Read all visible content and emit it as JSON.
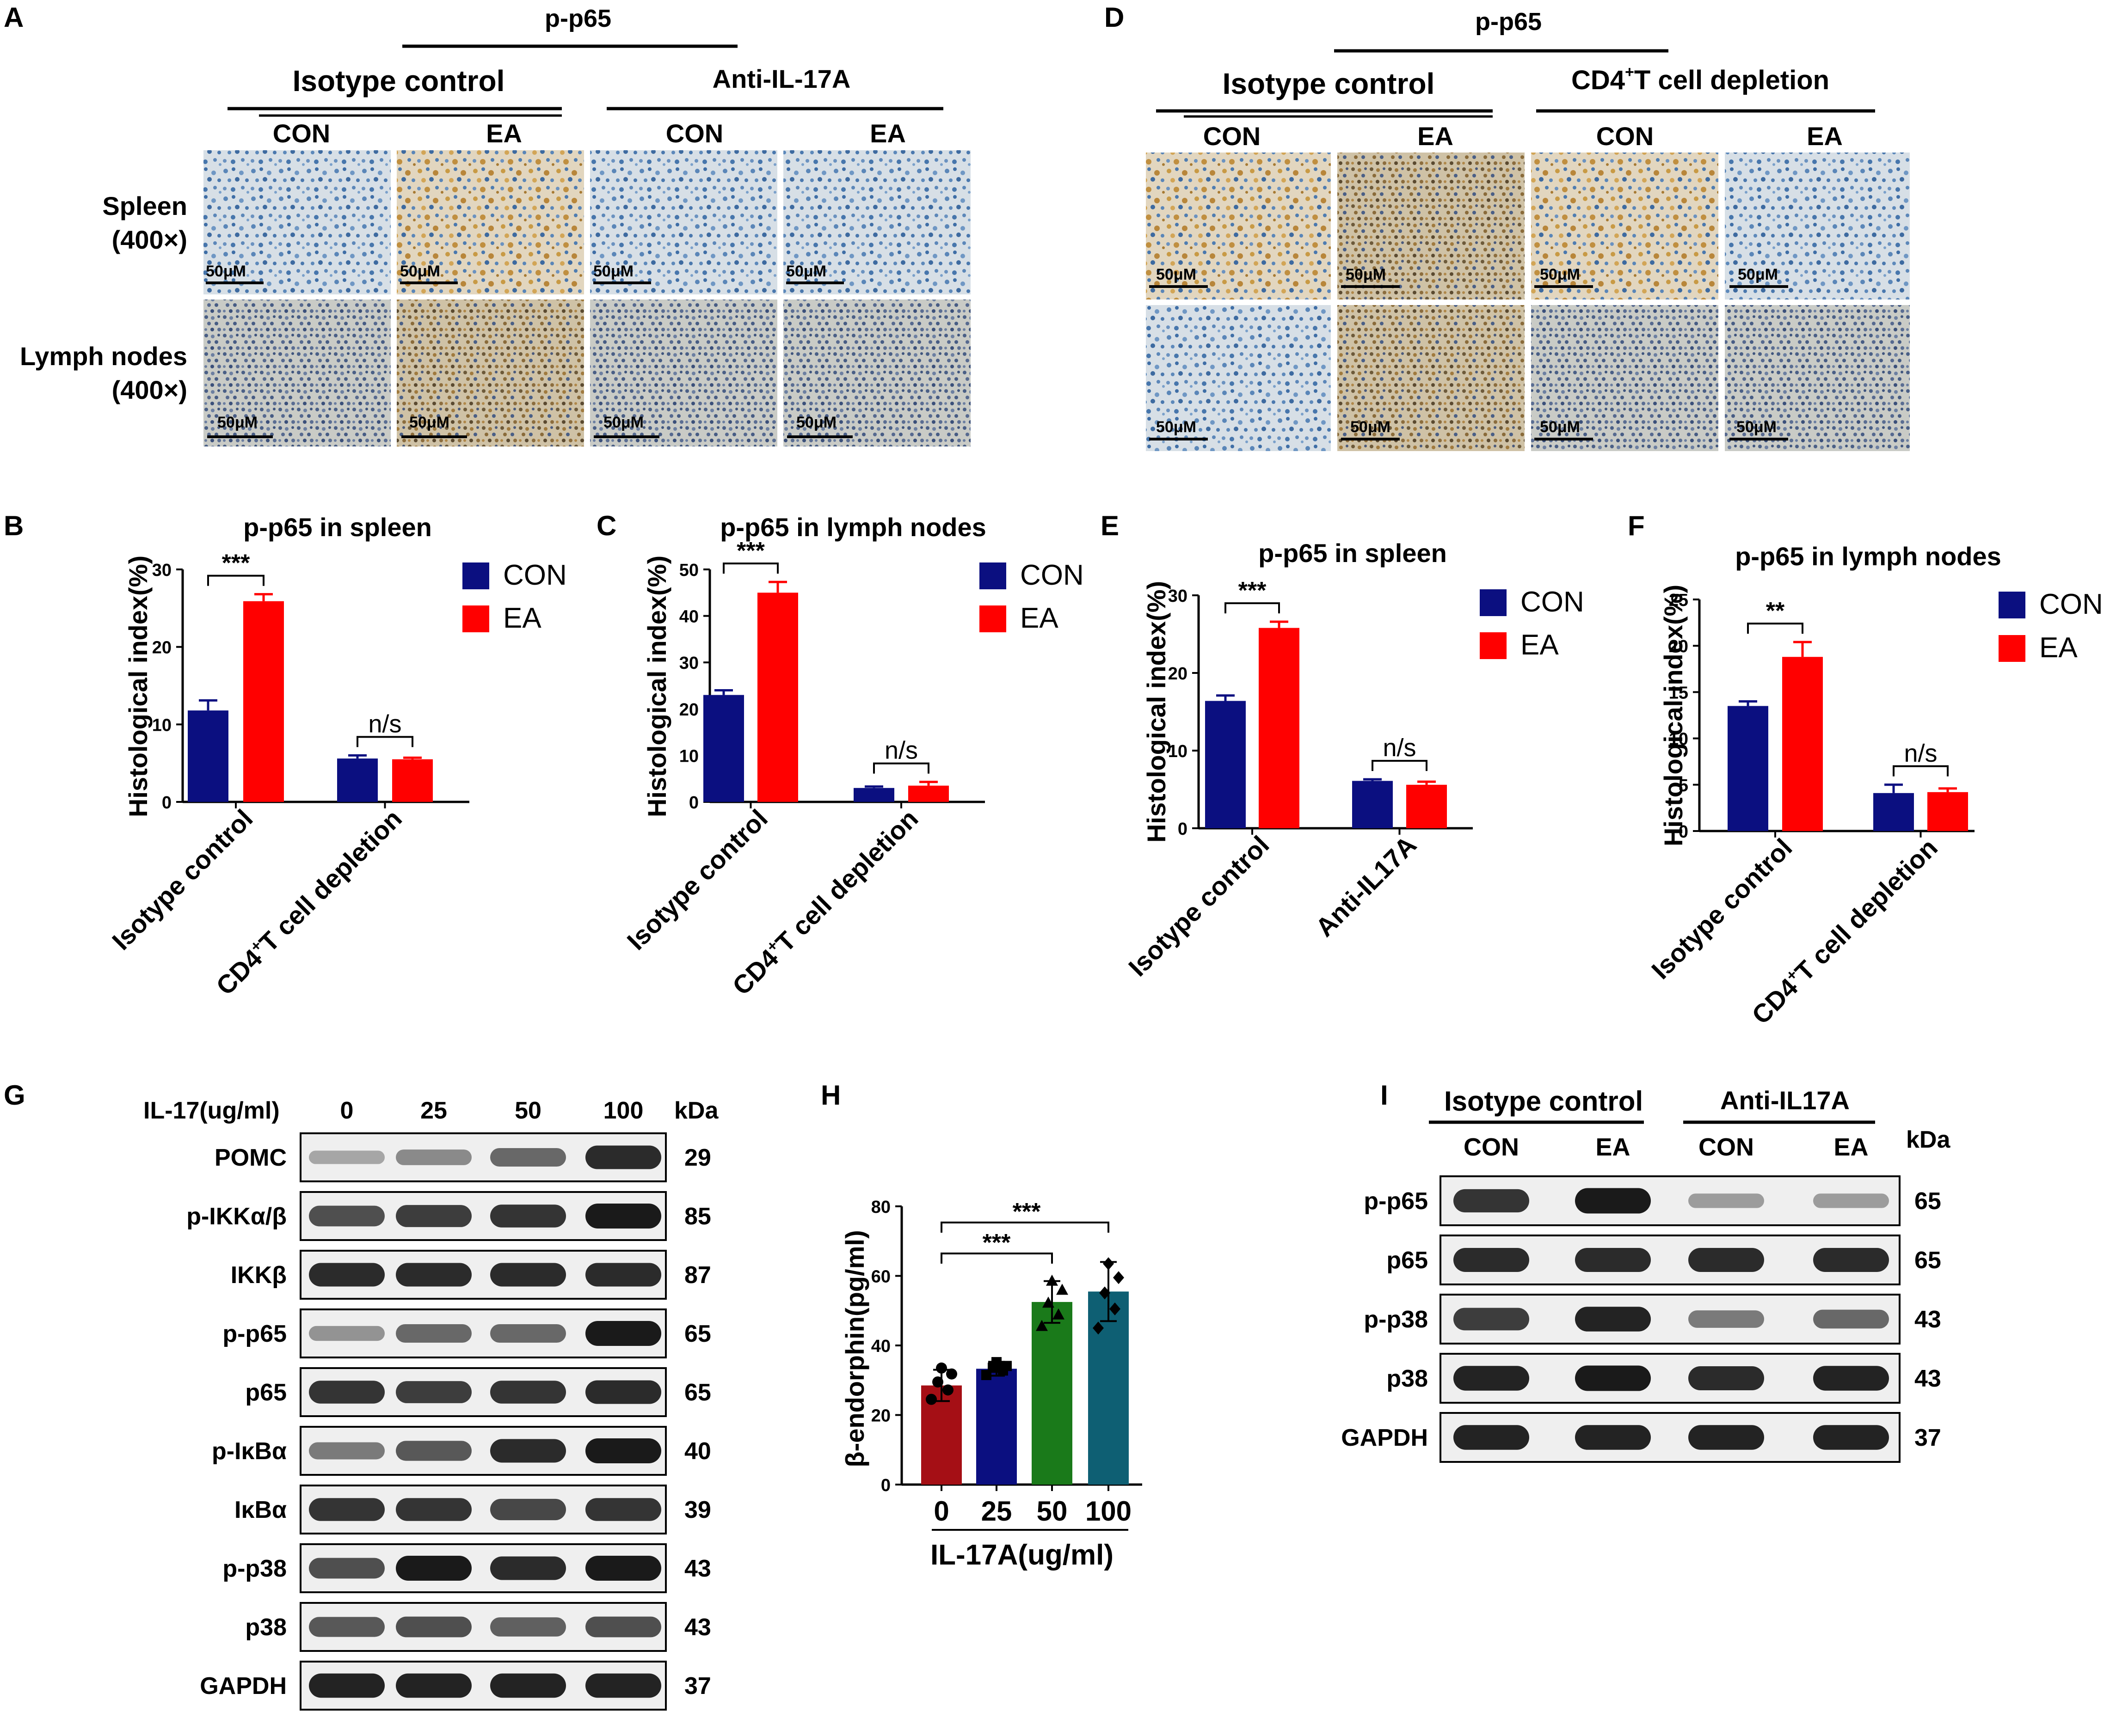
{
  "panel_a": {
    "letter": "A",
    "target": "p-p65",
    "group_left": "Isotype control",
    "group_right": "Anti-IL-17A",
    "cols": [
      "CON",
      "EA",
      "CON",
      "EA"
    ],
    "row1_line1": "Spleen",
    "row1_line2": "(400×)",
    "row2_line1": "Lymph nodes",
    "row2_line2": "(400×)",
    "scale_bar": "50μM"
  },
  "panel_d": {
    "letter": "D",
    "target": "p-p65",
    "group_left": "Isotype control",
    "group_right_main": "CD4",
    "group_right_sup": "+",
    "group_right_rest": "T cell depletion",
    "cols": [
      "CON",
      "EA",
      "CON",
      "EA"
    ],
    "scale_bar": "50μM"
  },
  "legend": {
    "con": "CON",
    "ea": "EA"
  },
  "colors": {
    "con": "#0b0f80",
    "ea": "#ff0000",
    "h_bars": [
      "#a50f15",
      "#0b0f80",
      "#1a7a1a",
      "#0e5f73"
    ]
  },
  "chart_data": [
    {
      "panel": "B",
      "type": "bar",
      "title": "p-p65 in spleen",
      "ylabel": "Histological index(%)",
      "ylim": [
        0,
        30
      ],
      "yticks": [
        "0",
        "10",
        "20",
        "30"
      ],
      "categories": [
        "Isotype control",
        "CD4+T cell depletion"
      ],
      "series": [
        {
          "name": "CON",
          "values": [
            11.8,
            5.6
          ],
          "errors": [
            1.3,
            0.4
          ]
        },
        {
          "name": "EA",
          "values": [
            25.9,
            5.5
          ],
          "errors": [
            0.9,
            0.2
          ]
        }
      ],
      "annotations": [
        "***",
        "n/s"
      ]
    },
    {
      "panel": "C",
      "type": "bar",
      "title": "p-p65 in lymph nodes",
      "ylabel": "Histological index(%)",
      "ylim": [
        0,
        50
      ],
      "yticks": [
        "0",
        "10",
        "20",
        "30",
        "40",
        "50"
      ],
      "categories": [
        "Isotype control",
        "CD4+T cell depletion"
      ],
      "series": [
        {
          "name": "CON",
          "values": [
            23.0,
            3.0
          ],
          "errors": [
            1.0,
            0.3
          ]
        },
        {
          "name": "EA",
          "values": [
            45.0,
            3.5
          ],
          "errors": [
            2.3,
            0.8
          ]
        }
      ],
      "annotations": [
        "***",
        "n/s"
      ]
    },
    {
      "panel": "E",
      "type": "bar",
      "title": "p-p65 in spleen",
      "ylabel": "Histological index(%)",
      "ylim": [
        0,
        30
      ],
      "yticks": [
        "0",
        "10",
        "20",
        "30"
      ],
      "categories": [
        "Isotype control",
        "Anti-IL17A"
      ],
      "series": [
        {
          "name": "CON",
          "values": [
            16.4,
            6.1
          ],
          "errors": [
            0.7,
            0.2
          ]
        },
        {
          "name": "EA",
          "values": [
            25.8,
            5.6
          ],
          "errors": [
            0.8,
            0.4
          ]
        }
      ],
      "annotations": [
        "***",
        "n/s"
      ]
    },
    {
      "panel": "F",
      "type": "bar",
      "title": "p-p65 in lymph nodes",
      "ylabel": "Histological index(%)",
      "ylim": [
        0,
        25
      ],
      "yticks": [
        "0",
        "5",
        "10",
        "15",
        "20",
        "25"
      ],
      "categories": [
        "Isotype control",
        "CD4+T cell depletion"
      ],
      "series": [
        {
          "name": "CON",
          "values": [
            13.5,
            4.1
          ],
          "errors": [
            0.5,
            0.9
          ]
        },
        {
          "name": "EA",
          "values": [
            18.8,
            4.2
          ],
          "errors": [
            1.6,
            0.4
          ]
        }
      ],
      "annotations": [
        "**",
        "n/s"
      ]
    },
    {
      "panel": "H",
      "type": "bar",
      "ylabel": "β-endorphin(pg/ml)",
      "xlabel": "IL-17A(ug/ml)",
      "ylim": [
        0,
        80
      ],
      "yticks": [
        "0",
        "20",
        "40",
        "60",
        "80"
      ],
      "categories": [
        "0",
        "25",
        "50",
        "100"
      ],
      "values": [
        28.5,
        33.3,
        52.5,
        55.5
      ],
      "errors": [
        4.5,
        2.0,
        6.0,
        8.5
      ],
      "points": [
        [
          24.5,
          27.2,
          29.5,
          31.8,
          33.5
        ],
        [
          31.5,
          32.8,
          33.6,
          34.1,
          35.2
        ],
        [
          45.5,
          48.8,
          52.2,
          55.9,
          58.5
        ],
        [
          45.0,
          50.5,
          55.1,
          59.5,
          63.5
        ]
      ],
      "annotations": [
        "***",
        "***"
      ]
    }
  ],
  "panel_g": {
    "letter": "G",
    "header_label": "IL-17(ug/ml)",
    "doses": [
      "0",
      "25",
      "50",
      "100"
    ],
    "kda_label": "kDa",
    "blots": [
      {
        "name": "POMC",
        "kda": "29",
        "intensity": [
          0.2,
          0.35,
          0.55,
          0.9
        ]
      },
      {
        "name": "p-IKKα/β",
        "kda": "85",
        "intensity": [
          0.7,
          0.8,
          0.85,
          1.0
        ]
      },
      {
        "name": "IKKβ",
        "kda": "87",
        "intensity": [
          0.9,
          0.9,
          0.9,
          0.9
        ]
      },
      {
        "name": "p-p65",
        "kda": "65",
        "intensity": [
          0.3,
          0.55,
          0.55,
          1.0
        ]
      },
      {
        "name": "p65",
        "kda": "65",
        "intensity": [
          0.85,
          0.8,
          0.85,
          0.9
        ]
      },
      {
        "name": "p-IκBα",
        "kda": "40",
        "intensity": [
          0.45,
          0.65,
          0.9,
          1.0
        ]
      },
      {
        "name": "IκBα",
        "kda": "39",
        "intensity": [
          0.85,
          0.85,
          0.75,
          0.85
        ]
      },
      {
        "name": "p-p38",
        "kda": "43",
        "intensity": [
          0.7,
          1.0,
          0.9,
          1.0
        ]
      },
      {
        "name": "p38",
        "kda": "43",
        "intensity": [
          0.65,
          0.7,
          0.6,
          0.7
        ]
      },
      {
        "name": "GAPDH",
        "kda": "37",
        "intensity": [
          0.95,
          0.95,
          0.95,
          0.95
        ]
      }
    ]
  },
  "panel_i": {
    "letter": "I",
    "group_left": "Isotype control",
    "group_right": "Anti-IL17A",
    "cols": [
      "CON",
      "EA",
      "CON",
      "EA"
    ],
    "kda_label": "kDa",
    "blots": [
      {
        "name": "p-p65",
        "kda": "65",
        "intensity": [
          0.85,
          1.0,
          0.25,
          0.25
        ]
      },
      {
        "name": "p65",
        "kda": "65",
        "intensity": [
          0.9,
          0.9,
          0.9,
          0.9
        ]
      },
      {
        "name": "p-p38",
        "kda": "43",
        "intensity": [
          0.8,
          0.95,
          0.45,
          0.55
        ]
      },
      {
        "name": "p38",
        "kda": "43",
        "intensity": [
          0.95,
          1.0,
          0.9,
          0.95
        ]
      },
      {
        "name": "GAPDH",
        "kda": "37",
        "intensity": [
          0.95,
          0.95,
          0.95,
          0.95
        ]
      }
    ]
  }
}
